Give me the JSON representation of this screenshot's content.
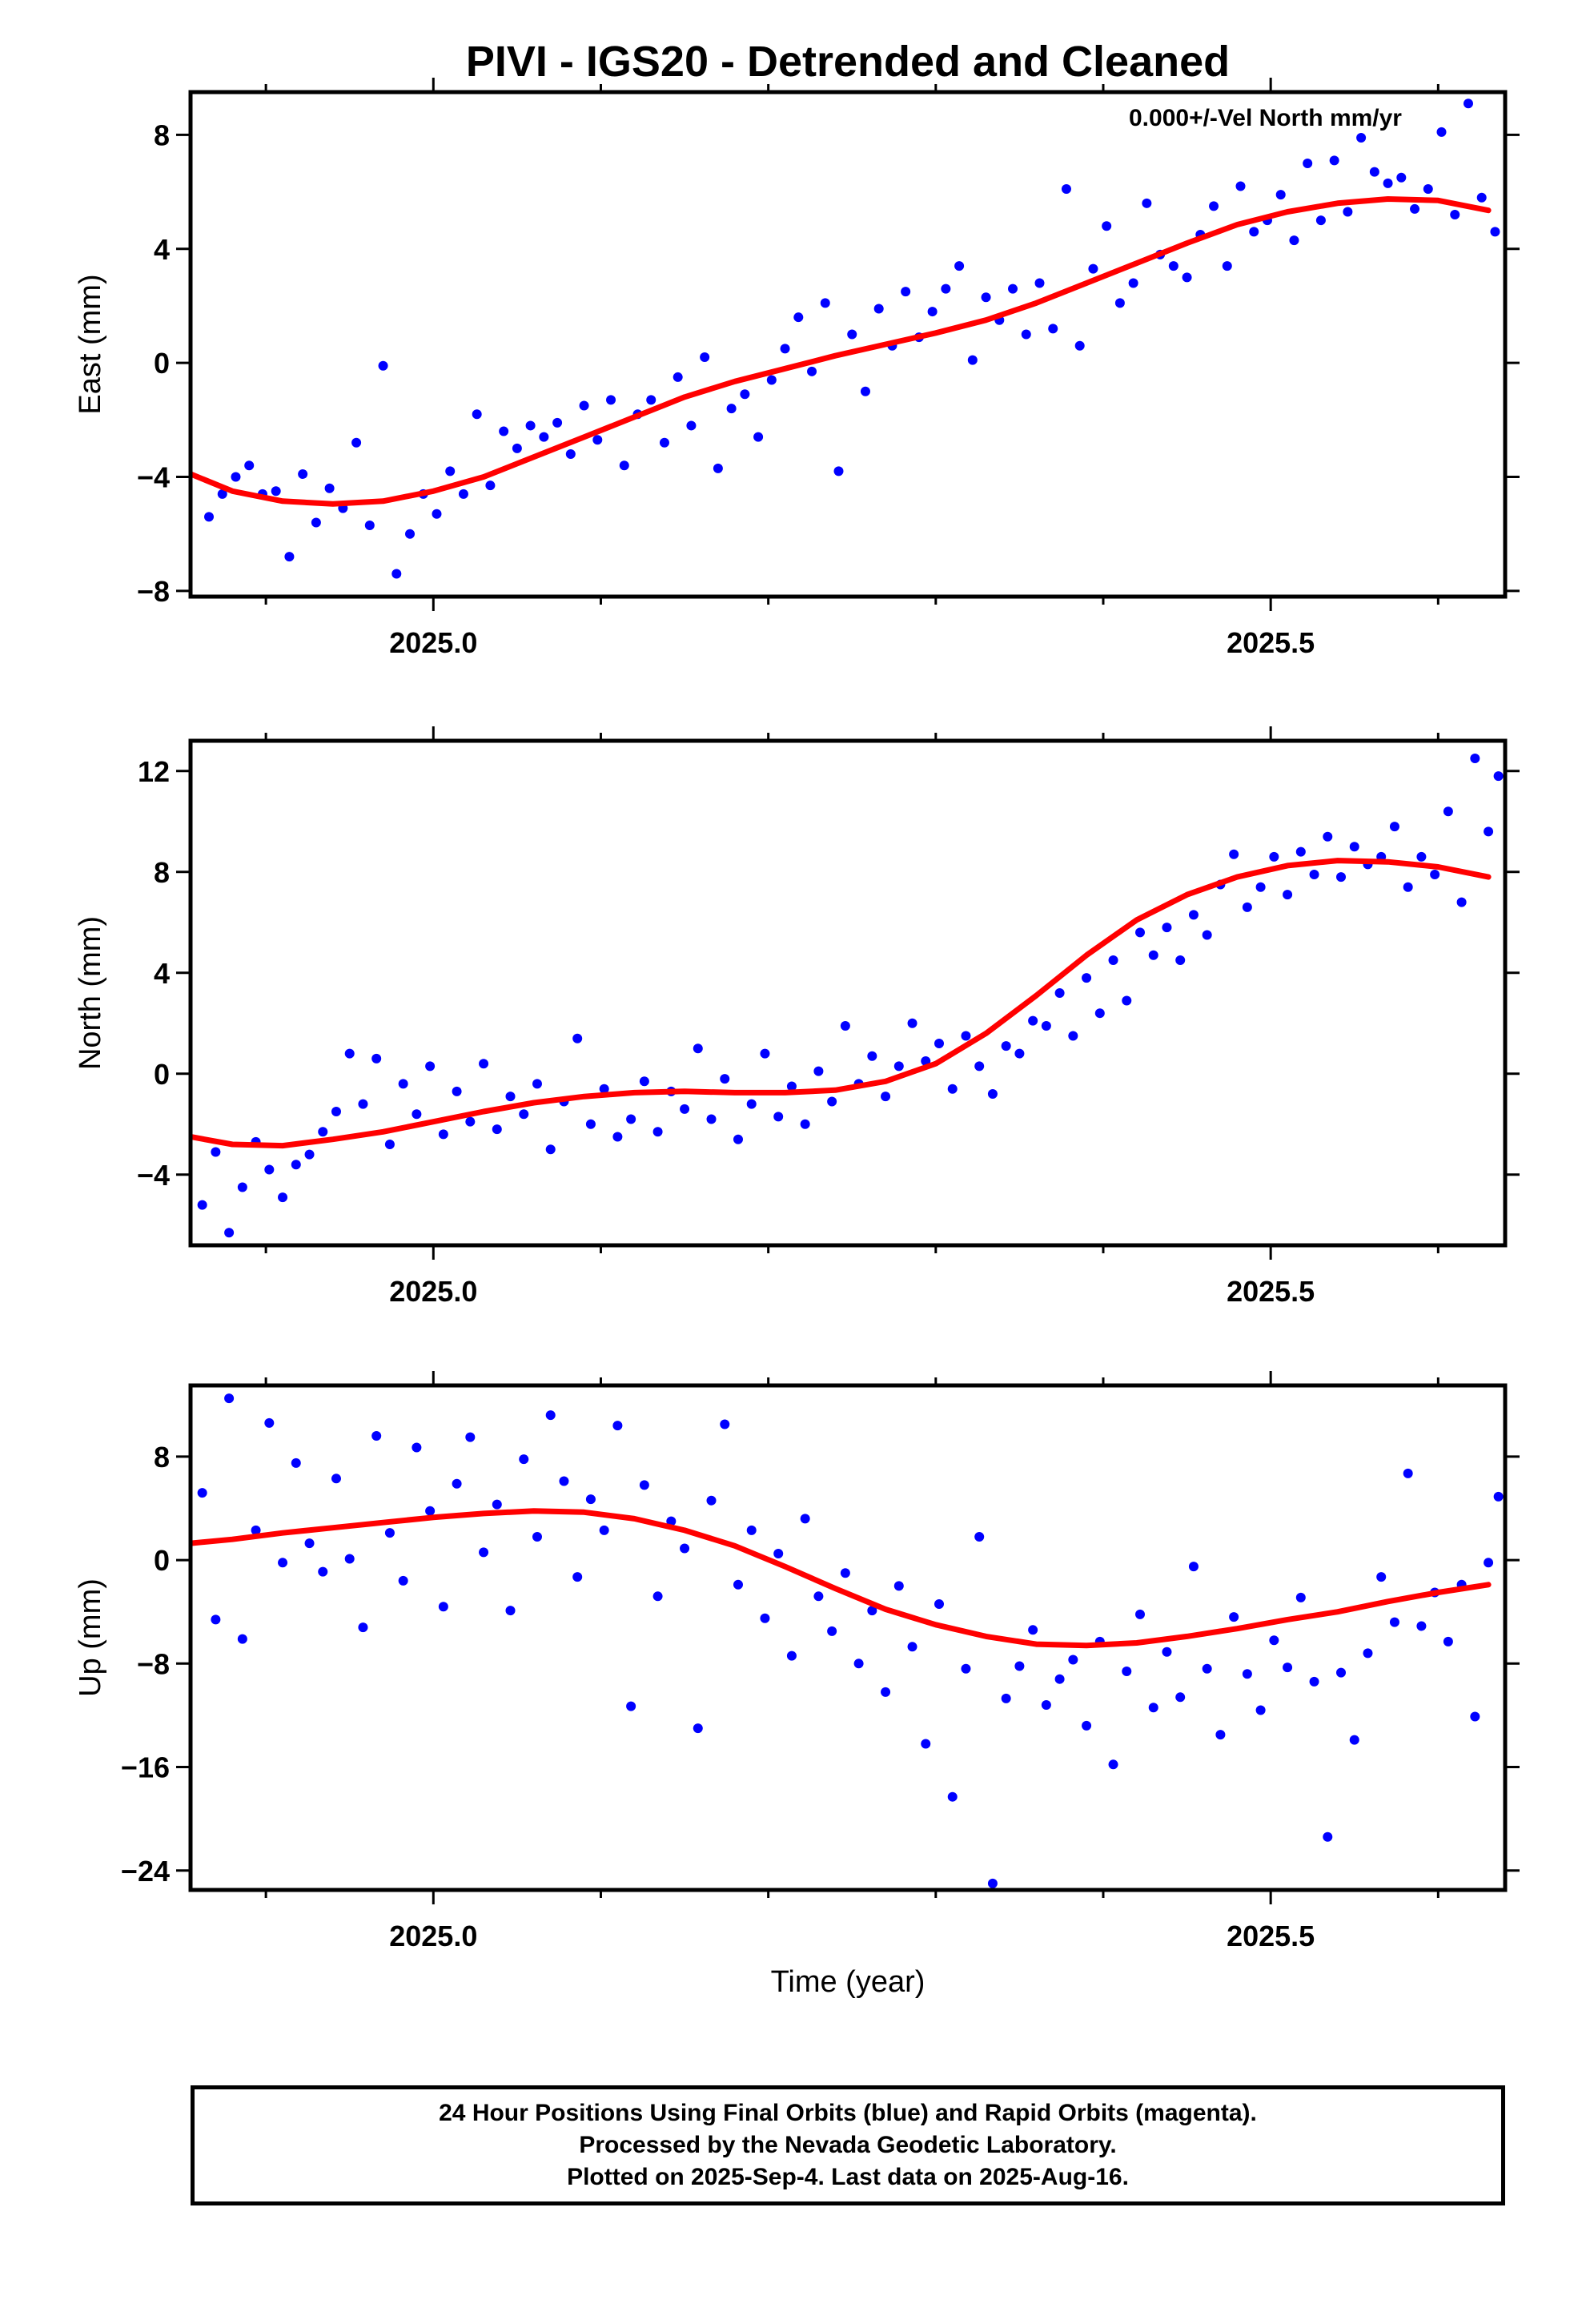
{
  "title": "PIVI - IGS20 - Detrended and Cleaned",
  "colors": {
    "final_orbits": "#0000ff",
    "model_fit": "#ff0000",
    "frame": "#000000"
  },
  "footer": {
    "line1": "24 Hour Positions Using Final Orbits (blue) and Rapid Orbits (magenta).",
    "line2": "Processed by the Nevada Geodetic Laboratory.",
    "line3": "Plotted on 2025-Sep-4. Last data on 2025-Aug-16."
  },
  "chart_data": [
    {
      "type": "scatter",
      "ylabel": "East (mm)",
      "annotation": "0.000+/-Vel North mm/yr",
      "xlim": [
        2024.855,
        2025.64
      ],
      "ylim": [
        -8.2,
        9.5
      ],
      "x_ticks": [
        2025.0,
        2025.5
      ],
      "x_tick_labels": [
        "2025.0",
        "2025.5"
      ],
      "x_minor_ticks": [
        2024.9,
        2025.1,
        2025.2,
        2025.3,
        2025.4,
        2025.6
      ],
      "y_ticks": [
        -8,
        -4,
        0,
        4,
        8
      ],
      "y_tick_labels": [
        "−8",
        "−4",
        "0",
        "4",
        "8"
      ],
      "series": [
        {
          "kind": "points",
          "x": [
            2024.866,
            2024.874,
            2024.882,
            2024.89,
            2024.898,
            2024.906,
            2024.914,
            2024.922,
            2024.93,
            2024.938,
            2024.946,
            2024.954,
            2024.962,
            2024.97,
            2024.978,
            2024.986,
            2024.994,
            2025.002,
            2025.01,
            2025.018,
            2025.026,
            2025.034,
            2025.042,
            2025.05,
            2025.058,
            2025.066,
            2025.074,
            2025.082,
            2025.09,
            2025.098,
            2025.106,
            2025.114,
            2025.122,
            2025.13,
            2025.138,
            2025.146,
            2025.154,
            2025.162,
            2025.17,
            2025.178,
            2025.186,
            2025.194,
            2025.202,
            2025.21,
            2025.218,
            2025.226,
            2025.234,
            2025.242,
            2025.25,
            2025.258,
            2025.266,
            2025.274,
            2025.282,
            2025.29,
            2025.298,
            2025.306,
            2025.314,
            2025.322,
            2025.33,
            2025.338,
            2025.346,
            2025.354,
            2025.362,
            2025.37,
            2025.378,
            2025.386,
            2025.394,
            2025.402,
            2025.41,
            2025.418,
            2025.426,
            2025.434,
            2025.442,
            2025.45,
            2025.458,
            2025.466,
            2025.474,
            2025.482,
            2025.49,
            2025.498,
            2025.506,
            2025.514,
            2025.522,
            2025.53,
            2025.538,
            2025.546,
            2025.554,
            2025.562,
            2025.57,
            2025.578,
            2025.586,
            2025.594,
            2025.602,
            2025.61,
            2025.618,
            2025.626,
            2025.634
          ],
          "y": [
            -5.4,
            -4.6,
            -4.0,
            -3.6,
            -4.6,
            -4.5,
            -6.8,
            -3.9,
            -5.6,
            -4.4,
            -5.1,
            -2.8,
            -5.7,
            -0.1,
            -7.4,
            -6.0,
            -4.6,
            -5.3,
            -3.8,
            -4.6,
            -1.8,
            -4.3,
            -2.4,
            -3.0,
            -2.2,
            -2.6,
            -2.1,
            -3.2,
            -1.5,
            -2.7,
            -1.3,
            -3.6,
            -1.8,
            -1.3,
            -2.8,
            -0.5,
            -2.2,
            0.2,
            -3.7,
            -1.6,
            -1.1,
            -2.6,
            -0.6,
            0.5,
            1.6,
            -0.3,
            2.1,
            -3.8,
            1.0,
            -1.0,
            1.9,
            0.6,
            2.5,
            0.9,
            1.8,
            2.6,
            3.4,
            0.1,
            2.3,
            1.5,
            2.6,
            1.0,
            2.8,
            1.2,
            6.1,
            0.6,
            3.3,
            4.8,
            2.1,
            2.8,
            5.6,
            3.8,
            3.4,
            3.0,
            4.5,
            5.5,
            3.4,
            6.2,
            4.6,
            5.0,
            5.9,
            4.3,
            7.0,
            5.0,
            7.1,
            5.3,
            7.9,
            6.7,
            6.3,
            6.5,
            5.4,
            6.1,
            8.1,
            5.2,
            9.1,
            5.8,
            4.6
          ]
        },
        {
          "kind": "line",
          "x": [
            2024.855,
            2024.88,
            2024.91,
            2024.94,
            2024.97,
            2025.0,
            2025.03,
            2025.06,
            2025.09,
            2025.12,
            2025.15,
            2025.18,
            2025.21,
            2025.24,
            2025.27,
            2025.3,
            2025.33,
            2025.36,
            2025.39,
            2025.42,
            2025.45,
            2025.48,
            2025.51,
            2025.54,
            2025.57,
            2025.6,
            2025.63
          ],
          "y": [
            -3.9,
            -4.5,
            -4.85,
            -4.95,
            -4.85,
            -4.5,
            -4.0,
            -3.3,
            -2.6,
            -1.9,
            -1.2,
            -0.65,
            -0.2,
            0.25,
            0.65,
            1.05,
            1.5,
            2.1,
            2.8,
            3.5,
            4.2,
            4.85,
            5.3,
            5.6,
            5.75,
            5.7,
            5.35
          ]
        }
      ]
    },
    {
      "type": "scatter",
      "ylabel": "North (mm)",
      "xlim": [
        2024.855,
        2025.64
      ],
      "ylim": [
        -6.8,
        13.2
      ],
      "x_ticks": [
        2025.0,
        2025.5
      ],
      "x_tick_labels": [
        "2025.0",
        "2025.5"
      ],
      "x_minor_ticks": [
        2024.9,
        2025.1,
        2025.2,
        2025.3,
        2025.4,
        2025.6
      ],
      "y_ticks": [
        -4,
        0,
        4,
        8,
        12
      ],
      "y_tick_labels": [
        "−4",
        "0",
        "4",
        "8",
        "12"
      ],
      "series": [
        {
          "kind": "points",
          "x": [
            2024.862,
            2024.87,
            2024.878,
            2024.886,
            2024.894,
            2024.902,
            2024.91,
            2024.918,
            2024.926,
            2024.934,
            2024.942,
            2024.95,
            2024.958,
            2024.966,
            2024.974,
            2024.982,
            2024.99,
            2024.998,
            2025.006,
            2025.014,
            2025.022,
            2025.03,
            2025.038,
            2025.046,
            2025.054,
            2025.062,
            2025.07,
            2025.078,
            2025.086,
            2025.094,
            2025.102,
            2025.11,
            2025.118,
            2025.126,
            2025.134,
            2025.142,
            2025.15,
            2025.158,
            2025.166,
            2025.174,
            2025.182,
            2025.19,
            2025.198,
            2025.206,
            2025.214,
            2025.222,
            2025.23,
            2025.238,
            2025.246,
            2025.254,
            2025.262,
            2025.27,
            2025.278,
            2025.286,
            2025.294,
            2025.302,
            2025.31,
            2025.318,
            2025.326,
            2025.334,
            2025.342,
            2025.35,
            2025.358,
            2025.366,
            2025.374,
            2025.382,
            2025.39,
            2025.398,
            2025.406,
            2025.414,
            2025.422,
            2025.43,
            2025.438,
            2025.446,
            2025.454,
            2025.462,
            2025.47,
            2025.478,
            2025.486,
            2025.494,
            2025.502,
            2025.51,
            2025.518,
            2025.526,
            2025.534,
            2025.542,
            2025.55,
            2025.558,
            2025.566,
            2025.574,
            2025.582,
            2025.59,
            2025.598,
            2025.606,
            2025.614,
            2025.622,
            2025.63,
            2025.636
          ],
          "y": [
            -5.2,
            -3.1,
            -6.3,
            -4.5,
            -2.7,
            -3.8,
            -4.9,
            -3.6,
            -3.2,
            -2.3,
            -1.5,
            0.8,
            -1.2,
            0.6,
            -2.8,
            -0.4,
            -1.6,
            0.3,
            -2.4,
            -0.7,
            -1.9,
            0.4,
            -2.2,
            -0.9,
            -1.6,
            -0.4,
            -3.0,
            -1.1,
            1.4,
            -2.0,
            -0.6,
            -2.5,
            -1.8,
            -0.3,
            -2.3,
            -0.7,
            -1.4,
            1.0,
            -1.8,
            -0.2,
            -2.6,
            -1.2,
            0.8,
            -1.7,
            -0.5,
            -2.0,
            0.1,
            -1.1,
            1.9,
            -0.4,
            0.7,
            -0.9,
            0.3,
            2.0,
            0.5,
            1.2,
            -0.6,
            1.5,
            0.3,
            -0.8,
            1.1,
            0.8,
            2.1,
            1.9,
            3.2,
            1.5,
            3.8,
            2.4,
            4.5,
            2.9,
            5.6,
            4.7,
            5.8,
            4.5,
            6.3,
            5.5,
            7.5,
            8.7,
            6.6,
            7.4,
            8.6,
            7.1,
            8.8,
            7.9,
            9.4,
            7.8,
            9.0,
            8.3,
            8.6,
            9.8,
            7.4,
            8.6,
            7.9,
            10.4,
            6.8,
            12.5,
            9.6,
            11.8
          ]
        },
        {
          "kind": "line",
          "x": [
            2024.855,
            2024.88,
            2024.91,
            2024.94,
            2024.97,
            2025.0,
            2025.03,
            2025.06,
            2025.09,
            2025.12,
            2025.15,
            2025.18,
            2025.21,
            2025.24,
            2025.27,
            2025.3,
            2025.33,
            2025.36,
            2025.39,
            2025.42,
            2025.45,
            2025.48,
            2025.51,
            2025.54,
            2025.57,
            2025.6,
            2025.63
          ],
          "y": [
            -2.5,
            -2.8,
            -2.85,
            -2.6,
            -2.3,
            -1.9,
            -1.5,
            -1.15,
            -0.9,
            -0.75,
            -0.7,
            -0.75,
            -0.75,
            -0.65,
            -0.3,
            0.4,
            1.6,
            3.1,
            4.7,
            6.1,
            7.1,
            7.8,
            8.25,
            8.45,
            8.4,
            8.2,
            7.8
          ]
        }
      ]
    },
    {
      "type": "scatter",
      "ylabel": "Up (mm)",
      "xlabel": "Time (year)",
      "xlim": [
        2024.855,
        2025.64
      ],
      "ylim": [
        -25.5,
        13.5
      ],
      "x_ticks": [
        2025.0,
        2025.5
      ],
      "x_tick_labels": [
        "2025.0",
        "2025.5"
      ],
      "x_minor_ticks": [
        2024.9,
        2025.1,
        2025.2,
        2025.3,
        2025.4,
        2025.6
      ],
      "y_ticks": [
        -24,
        -16,
        -8,
        0,
        8
      ],
      "y_tick_labels": [
        "−24",
        "−16",
        "−8",
        "0",
        "8"
      ],
      "series": [
        {
          "kind": "points",
          "x": [
            2024.862,
            2024.87,
            2024.878,
            2024.886,
            2024.894,
            2024.902,
            2024.91,
            2024.918,
            2024.926,
            2024.934,
            2024.942,
            2024.95,
            2024.958,
            2024.966,
            2024.974,
            2024.982,
            2024.99,
            2024.998,
            2025.006,
            2025.014,
            2025.022,
            2025.03,
            2025.038,
            2025.046,
            2025.054,
            2025.062,
            2025.07,
            2025.078,
            2025.086,
            2025.094,
            2025.102,
            2025.11,
            2025.118,
            2025.126,
            2025.134,
            2025.142,
            2025.15,
            2025.158,
            2025.166,
            2025.174,
            2025.182,
            2025.19,
            2025.198,
            2025.206,
            2025.214,
            2025.222,
            2025.23,
            2025.238,
            2025.246,
            2025.254,
            2025.262,
            2025.27,
            2025.278,
            2025.286,
            2025.294,
            2025.302,
            2025.31,
            2025.318,
            2025.326,
            2025.334,
            2025.342,
            2025.35,
            2025.358,
            2025.366,
            2025.374,
            2025.382,
            2025.39,
            2025.398,
            2025.406,
            2025.414,
            2025.422,
            2025.43,
            2025.438,
            2025.446,
            2025.454,
            2025.462,
            2025.47,
            2025.478,
            2025.486,
            2025.494,
            2025.502,
            2025.51,
            2025.518,
            2025.526,
            2025.534,
            2025.542,
            2025.55,
            2025.558,
            2025.566,
            2025.574,
            2025.582,
            2025.59,
            2025.598,
            2025.606,
            2025.614,
            2025.622,
            2025.63,
            2025.636
          ],
          "y": [
            5.2,
            -4.6,
            12.5,
            -6.1,
            2.3,
            10.6,
            -0.2,
            7.5,
            1.3,
            -0.9,
            6.3,
            0.1,
            -5.2,
            9.6,
            2.1,
            -1.6,
            8.7,
            3.8,
            -3.6,
            5.9,
            9.5,
            0.6,
            4.3,
            -3.9,
            7.8,
            1.8,
            11.2,
            6.1,
            -1.3,
            4.7,
            2.3,
            10.4,
            -11.3,
            5.8,
            -2.8,
            3.0,
            0.9,
            -13.0,
            4.6,
            10.5,
            -1.9,
            2.3,
            -4.5,
            0.5,
            -7.4,
            3.2,
            -2.8,
            -5.5,
            -1.0,
            -8.0,
            -3.9,
            -10.2,
            -2.0,
            -6.7,
            -14.2,
            -3.4,
            -18.3,
            -8.4,
            1.8,
            -25.0,
            -10.7,
            -8.2,
            -5.4,
            -11.2,
            -9.2,
            -7.7,
            -12.8,
            -6.3,
            -15.8,
            -8.6,
            -4.2,
            -11.4,
            -7.1,
            -10.6,
            -0.5,
            -8.4,
            -13.5,
            -4.4,
            -8.8,
            -11.6,
            -6.2,
            -8.3,
            -2.9,
            -9.4,
            -21.4,
            -8.7,
            -13.9,
            -7.2,
            -1.3,
            -4.8,
            6.7,
            -5.1,
            -2.5,
            -6.3,
            -1.9,
            -12.1,
            -0.2,
            4.9
          ]
        },
        {
          "kind": "line",
          "x": [
            2024.855,
            2024.88,
            2024.91,
            2024.94,
            2024.97,
            2025.0,
            2025.03,
            2025.06,
            2025.09,
            2025.12,
            2025.15,
            2025.18,
            2025.21,
            2025.24,
            2025.27,
            2025.3,
            2025.33,
            2025.36,
            2025.39,
            2025.42,
            2025.45,
            2025.48,
            2025.51,
            2025.54,
            2025.57,
            2025.6,
            2025.63
          ],
          "y": [
            1.3,
            1.6,
            2.1,
            2.5,
            2.9,
            3.3,
            3.6,
            3.8,
            3.7,
            3.2,
            2.3,
            1.1,
            -0.5,
            -2.2,
            -3.8,
            -5.0,
            -5.9,
            -6.5,
            -6.6,
            -6.4,
            -5.9,
            -5.3,
            -4.6,
            -4.0,
            -3.2,
            -2.5,
            -1.9
          ]
        }
      ]
    }
  ]
}
